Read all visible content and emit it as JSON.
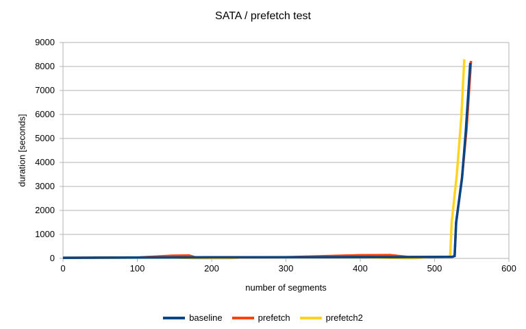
{
  "chart_data": {
    "type": "line",
    "title": "SATA / prefetch test",
    "xlabel": "number of segments",
    "ylabel": "duration [seconds]",
    "xlim": [
      0,
      600
    ],
    "ylim": [
      0,
      9000
    ],
    "x_ticks": [
      0,
      100,
      200,
      300,
      400,
      500,
      600
    ],
    "y_ticks": [
      0,
      1000,
      2000,
      3000,
      4000,
      5000,
      6000,
      7000,
      8000,
      9000
    ],
    "grid": "horizontal-major",
    "legend_position": "bottom-center",
    "colors": {
      "grid": "#b3b3b3",
      "axis": "#b3b3b3",
      "text": "#000000",
      "background": "#ffffff"
    },
    "series": [
      {
        "name": "baseline",
        "color": "#004586",
        "points": [
          [
            0,
            25
          ],
          [
            50,
            30
          ],
          [
            100,
            35
          ],
          [
            150,
            40
          ],
          [
            200,
            45
          ],
          [
            250,
            45
          ],
          [
            300,
            50
          ],
          [
            350,
            50
          ],
          [
            400,
            55
          ],
          [
            450,
            55
          ],
          [
            500,
            60
          ],
          [
            515,
            65
          ],
          [
            524,
            70
          ],
          [
            527,
            100
          ],
          [
            529,
            1500
          ],
          [
            537,
            3350
          ],
          [
            542,
            5300
          ],
          [
            548,
            8150
          ]
        ]
      },
      {
        "name": "prefetch",
        "color": "#ff420e",
        "points": [
          [
            0,
            25
          ],
          [
            100,
            35
          ],
          [
            148,
            115
          ],
          [
            170,
            120
          ],
          [
            178,
            45
          ],
          [
            250,
            45
          ],
          [
            300,
            50
          ],
          [
            398,
            130
          ],
          [
            440,
            140
          ],
          [
            464,
            60
          ],
          [
            500,
            60
          ],
          [
            515,
            65
          ],
          [
            524,
            70
          ],
          [
            527,
            100
          ],
          [
            529,
            1500
          ],
          [
            537,
            3380
          ],
          [
            543,
            5400
          ],
          [
            549,
            8230
          ]
        ]
      },
      {
        "name": "prefetch2",
        "color": "#ffd320",
        "points": [
          [
            0,
            20
          ],
          [
            100,
            30
          ],
          [
            150,
            35
          ],
          [
            176,
            5
          ],
          [
            226,
            5
          ],
          [
            240,
            40
          ],
          [
            300,
            45
          ],
          [
            400,
            50
          ],
          [
            464,
            5
          ],
          [
            473,
            8
          ],
          [
            490,
            50
          ],
          [
            512,
            60
          ],
          [
            519,
            70
          ],
          [
            521,
            100
          ],
          [
            523,
            1500
          ],
          [
            530,
            3500
          ],
          [
            536,
            5900
          ],
          [
            540,
            8300
          ]
        ]
      }
    ]
  }
}
